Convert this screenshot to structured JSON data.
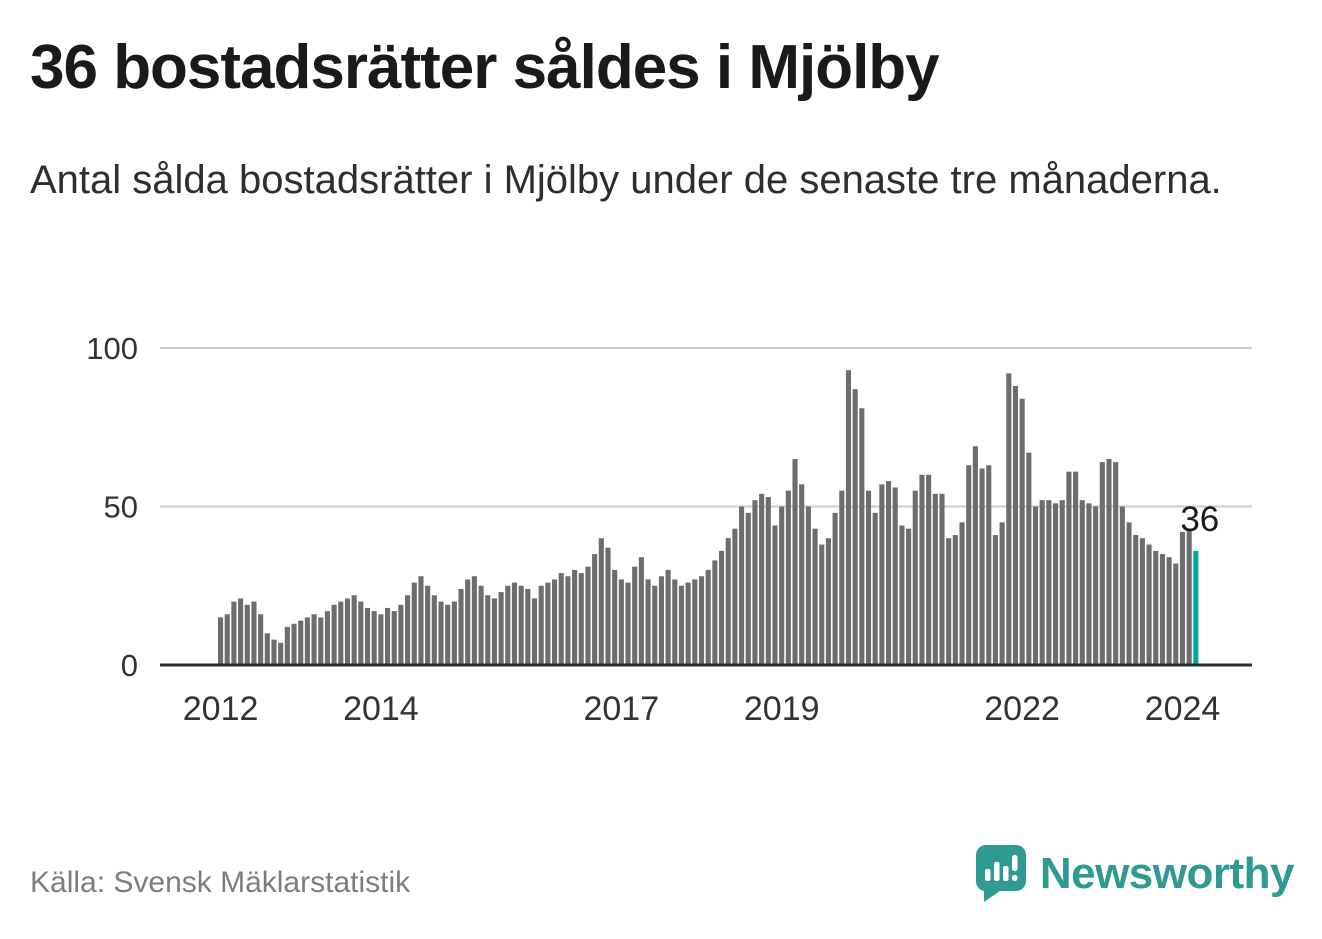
{
  "header": {
    "title": "36 bostadsrätter såldes i Mjölby",
    "subtitle": "Antal sålda bostadsrätter i Mjölby under de senaste tre månaderna."
  },
  "chart_data": {
    "type": "bar",
    "title": "Antal sålda bostadsrätter i Mjölby under de senaste tre månaderna",
    "xlabel": "",
    "ylabel": "",
    "ylim": [
      0,
      100
    ],
    "yticks": [
      0,
      50,
      100
    ],
    "grid": true,
    "x_unit": "month",
    "x_start": "2012",
    "x_tick_labels": [
      "2012",
      "2014",
      "2017",
      "2019",
      "2022",
      "2024"
    ],
    "x_tick_indices": [
      0,
      24,
      60,
      84,
      120,
      144
    ],
    "values": [
      15,
      16,
      20,
      21,
      19,
      20,
      16,
      10,
      8,
      7,
      12,
      13,
      14,
      15,
      16,
      15,
      17,
      19,
      20,
      21,
      22,
      20,
      18,
      17,
      16,
      18,
      17,
      19,
      22,
      26,
      28,
      25,
      22,
      20,
      19,
      20,
      24,
      27,
      28,
      25,
      22,
      21,
      23,
      25,
      26,
      25,
      24,
      21,
      25,
      26,
      27,
      29,
      28,
      30,
      29,
      31,
      35,
      40,
      37,
      30,
      27,
      26,
      31,
      34,
      27,
      25,
      28,
      30,
      27,
      25,
      26,
      27,
      28,
      30,
      33,
      36,
      40,
      43,
      50,
      48,
      52,
      54,
      53,
      44,
      50,
      55,
      65,
      57,
      50,
      43,
      38,
      40,
      48,
      55,
      93,
      87,
      81,
      55,
      48,
      57,
      58,
      56,
      44,
      43,
      55,
      60,
      60,
      54,
      54,
      40,
      41,
      45,
      63,
      69,
      62,
      63,
      41,
      45,
      92,
      88,
      84,
      67,
      50,
      52,
      52,
      51,
      52,
      61,
      61,
      52,
      51,
      50,
      64,
      65,
      64,
      50,
      45,
      41,
      40,
      38,
      36,
      35,
      34,
      32,
      42,
      43,
      36
    ],
    "highlight_index": 146,
    "highlight_label": "36",
    "bar_color": "#6d6d6d",
    "highlight_color": "#00a59c",
    "grid_color": "#cccccc",
    "axis_color": "#2b2b2b",
    "tick_color": "#333333",
    "annotation_color": "#1a1a1a"
  },
  "footer": {
    "source": "Källa: Svensk Mäklarstatistik",
    "brand": "Newsworthy",
    "brand_color": "#2e9a90"
  }
}
